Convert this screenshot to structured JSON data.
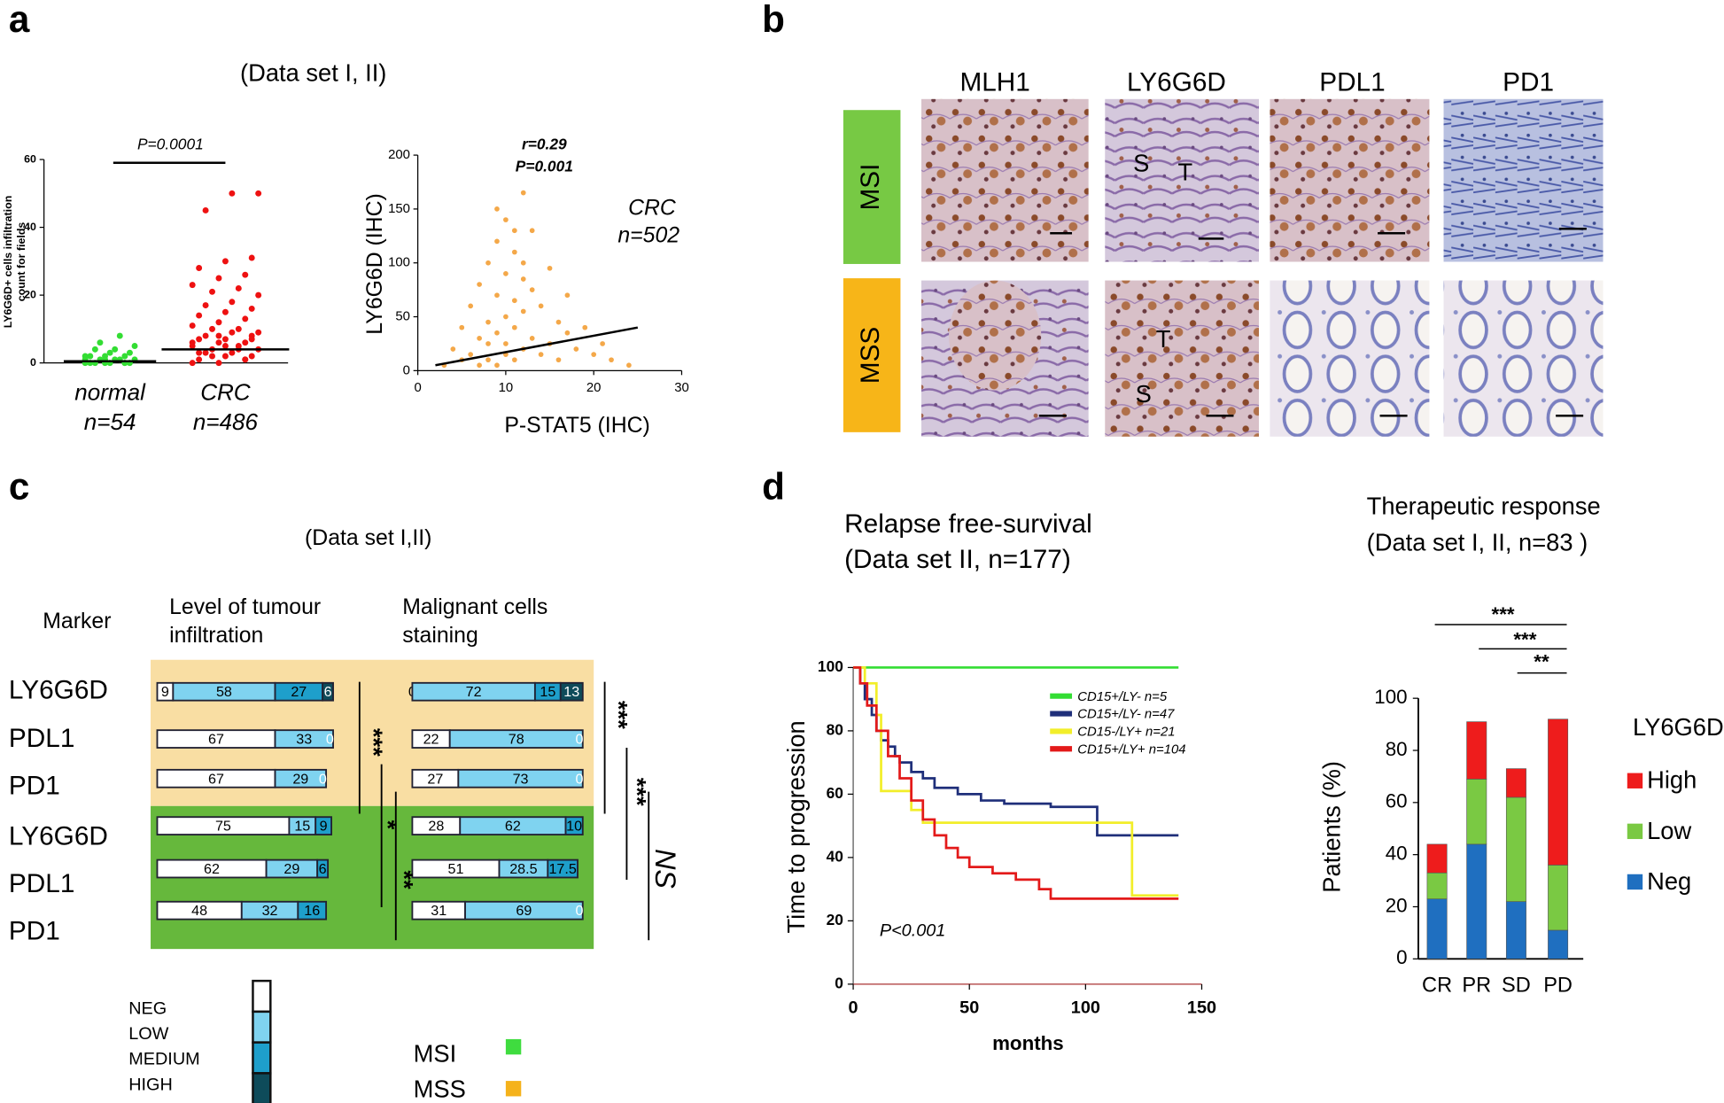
{
  "panel_labels": [
    "a",
    "b",
    "c",
    "d"
  ],
  "chart_data": [
    {
      "type": "dot",
      "title": "(Data set  I, II)",
      "y_label": [
        "LY6G6D+ cells infiltration",
        "count for fields"
      ],
      "categories": [
        "normal",
        "CRC"
      ],
      "n_labels": [
        "n=54",
        "n=486"
      ],
      "p_value": "P=0.0001",
      "colors": [
        "#33dd33",
        "#ee1111"
      ],
      "values": [
        [
          0,
          0,
          0,
          0,
          0,
          0,
          0,
          1,
          1,
          1,
          1,
          1,
          2,
          2,
          2,
          3,
          3,
          4,
          4,
          5,
          6,
          8,
          2,
          1,
          0
        ],
        [
          0,
          0,
          1,
          1,
          2,
          2,
          3,
          3,
          4,
          4,
          5,
          5,
          6,
          6,
          7,
          7,
          8,
          8,
          9,
          9,
          10,
          10,
          11,
          12,
          13,
          14,
          15,
          16,
          17,
          18,
          20,
          21,
          22,
          23,
          25,
          26,
          28,
          30,
          31,
          45,
          50,
          50,
          2,
          4,
          6,
          8,
          1,
          3,
          5,
          7
        ]
      ],
      "center_lines": [
        0.5,
        4
      ],
      "ylim": [
        0,
        60
      ],
      "yticks": [
        0,
        20,
        40,
        60
      ]
    },
    {
      "type": "scatter",
      "annotations": [
        "r=0.29",
        "P=0.001"
      ],
      "labels": [
        "CRC",
        "n=502"
      ],
      "x_label": "P-STAT5 (IHC)",
      "y_label": "LY6G6D (IHC)",
      "color": "#f4a849",
      "x": [
        3,
        4,
        5,
        5,
        6,
        6,
        7,
        7,
        7,
        8,
        8,
        8,
        8,
        9,
        9,
        9,
        9,
        10,
        10,
        10,
        10,
        10,
        11,
        11,
        11,
        11,
        12,
        12,
        12,
        12,
        13,
        13,
        13,
        14,
        14,
        15,
        15,
        16,
        16,
        17,
        17,
        18,
        19,
        20,
        21,
        22,
        24,
        12,
        9,
        11
      ],
      "values": [
        5,
        20,
        10,
        40,
        15,
        60,
        30,
        5,
        80,
        10,
        45,
        100,
        25,
        5,
        35,
        70,
        120,
        15,
        50,
        90,
        140,
        25,
        10,
        40,
        65,
        110,
        20,
        55,
        85,
        165,
        30,
        75,
        130,
        15,
        60,
        25,
        95,
        45,
        10,
        35,
        70,
        20,
        40,
        15,
        25,
        10,
        5,
        100,
        150,
        130
      ],
      "fit": {
        "x": [
          2,
          25
        ],
        "y": [
          5,
          40
        ]
      },
      "xlim": [
        0,
        30
      ],
      "xticks": [
        0,
        10,
        20,
        30
      ],
      "ylim": [
        0,
        200
      ],
      "yticks": [
        0,
        50,
        100,
        150,
        200
      ]
    },
    {
      "type": "step",
      "title": [
        "Relapse free-survival",
        "(Data set  II, n=177)"
      ],
      "x_label": "months",
      "y_label": "Time to progression",
      "p_value": "P<0.001",
      "series": [
        {
          "name": "CD15+/LY- n=5",
          "color": "#33dd33",
          "x": [
            0,
            140
          ],
          "values": [
            100,
            100
          ]
        },
        {
          "name": "CD15+/LY- n=47",
          "color": "#1f2f7a",
          "x": [
            0,
            3,
            5,
            8,
            10,
            12,
            15,
            18,
            20,
            25,
            30,
            35,
            45,
            55,
            65,
            85,
            105,
            110,
            140
          ],
          "values": [
            100,
            95,
            90,
            85,
            80,
            77,
            75,
            72,
            70,
            67,
            65,
            62,
            60,
            58,
            57,
            56,
            47,
            47,
            47
          ]
        },
        {
          "name": "CD15-/LY+ n=21",
          "color": "#f2ee2a",
          "x": [
            0,
            5,
            10,
            12,
            25,
            30,
            120,
            140
          ],
          "values": [
            100,
            95,
            85,
            61,
            55,
            51,
            28,
            28
          ]
        },
        {
          "name": "CD15+/LY+ n=104",
          "color": "#e31a1a",
          "x": [
            0,
            3,
            6,
            10,
            15,
            20,
            25,
            30,
            35,
            40,
            45,
            50,
            60,
            70,
            80,
            85,
            100,
            140
          ],
          "values": [
            100,
            95,
            88,
            80,
            72,
            65,
            58,
            52,
            47,
            43,
            40,
            37,
            35,
            33,
            30,
            27,
            27,
            27
          ]
        }
      ],
      "xlim": [
        0,
        150
      ],
      "xticks": [
        0,
        50,
        100,
        150
      ],
      "ylim": [
        0,
        100
      ],
      "yticks": [
        0,
        20,
        40,
        60,
        80,
        100
      ]
    },
    {
      "type": "stacked_bar",
      "title": [
        "Therapeutic response",
        "(Data set I, II, n=83 )"
      ],
      "y_label": "Patients (%)",
      "legend_title": "LY6G6D",
      "categories": [
        "CR",
        "PR",
        "SD",
        "PD"
      ],
      "series": [
        {
          "name": "Neg",
          "color": "#1f6fc0",
          "values": [
            23,
            44,
            22,
            11
          ]
        },
        {
          "name": "Low",
          "color": "#7ac943",
          "values": [
            10,
            25,
            40,
            25
          ]
        },
        {
          "name": "High",
          "color": "#ee1c1c",
          "values": [
            11,
            22,
            11,
            56
          ]
        }
      ],
      "significance": [
        "***",
        "***",
        "**"
      ],
      "ylim": [
        0,
        100
      ],
      "yticks": [
        0,
        20,
        40,
        60,
        80,
        100
      ]
    }
  ],
  "panel_b": {
    "columns": [
      "MLH1",
      "LY6G6D",
      "PDL1",
      "PD1"
    ],
    "rows": [
      {
        "label": "MSI",
        "color": "#77c944"
      },
      {
        "label": "MSS",
        "color": "#f7b518"
      }
    ],
    "markers": [
      "S",
      "T",
      "T",
      "S"
    ]
  },
  "panel_c": {
    "title": "(Data set  I,II)",
    "headers": [
      "Marker",
      [
        "Level of tumour",
        "infiltration"
      ],
      [
        "Malignant cells",
        "staining"
      ]
    ],
    "levels": [
      {
        "label": "NEG",
        "color": "#ffffff"
      },
      {
        "label": "LOW",
        "color": "#7fd3f0"
      },
      {
        "label": "MEDIUM",
        "color": "#1e9fcb"
      },
      {
        "label": "HIGH",
        "color": "#0e4b5a"
      }
    ],
    "groups": [
      {
        "label": "MSI",
        "color": "#3fdc3f",
        "background": "#66b83c"
      },
      {
        "label": "MSS",
        "color": "#f5b21b",
        "background": "#f9dea3"
      }
    ],
    "rows": [
      {
        "marker": "LY6G6D",
        "infiltration": [
          9,
          58,
          27,
          6
        ],
        "malignant": [
          0,
          72,
          15,
          13
        ]
      },
      {
        "marker": "PDL1",
        "infiltration": [
          67,
          33,
          null,
          0
        ],
        "malignant": [
          22,
          78,
          null,
          0
        ]
      },
      {
        "marker": "PD1",
        "infiltration": [
          67,
          29,
          null,
          0
        ],
        "malignant": [
          27,
          73,
          null,
          0
        ]
      },
      {
        "marker": "LY6G6D",
        "infiltration": [
          75,
          15,
          9,
          null
        ],
        "malignant": [
          28,
          62,
          10,
          null
        ]
      },
      {
        "marker": "PDL1",
        "infiltration": [
          62,
          29,
          6,
          null
        ],
        "malignant": [
          51,
          28.5,
          17.5,
          null
        ]
      },
      {
        "marker": "PD1",
        "infiltration": [
          48,
          32,
          16,
          null
        ],
        "malignant": [
          31,
          69,
          null,
          0
        ]
      }
    ],
    "significance": [
      "***",
      "*",
      "**",
      "***",
      "***",
      "NS"
    ]
  }
}
